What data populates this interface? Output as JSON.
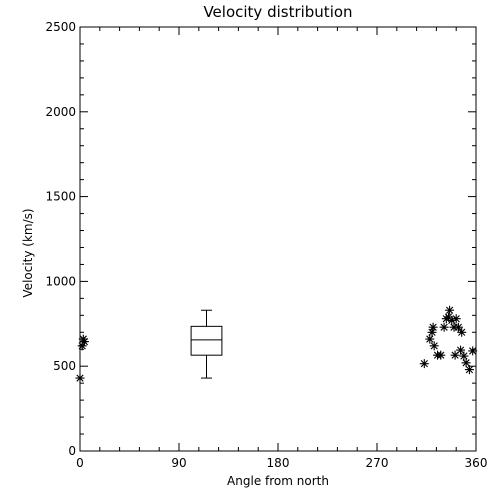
{
  "chart_data": {
    "type": "scatter",
    "title": "Velocity distribution",
    "xlabel": "Angle from north",
    "ylabel": "Velocity (km/s)",
    "xlim": [
      0,
      360
    ],
    "ylim": [
      0,
      2500
    ],
    "xticks": [
      0,
      90,
      180,
      270,
      360
    ],
    "yticks": [
      0,
      500,
      1000,
      1500,
      2000,
      2500
    ],
    "grid": false,
    "legend": "none",
    "marker": "asterisk",
    "color": "#000000",
    "points": [
      {
        "x": 0,
        "y": 430
      },
      {
        "x": 2,
        "y": 620
      },
      {
        "x": 3,
        "y": 660
      },
      {
        "x": 4,
        "y": 645
      },
      {
        "x": 313,
        "y": 515
      },
      {
        "x": 318,
        "y": 660
      },
      {
        "x": 320,
        "y": 700
      },
      {
        "x": 321,
        "y": 730
      },
      {
        "x": 322,
        "y": 620
      },
      {
        "x": 325,
        "y": 565
      },
      {
        "x": 328,
        "y": 565
      },
      {
        "x": 331,
        "y": 730
      },
      {
        "x": 333,
        "y": 780
      },
      {
        "x": 335,
        "y": 790
      },
      {
        "x": 336,
        "y": 830
      },
      {
        "x": 338,
        "y": 770
      },
      {
        "x": 340,
        "y": 730
      },
      {
        "x": 341,
        "y": 565
      },
      {
        "x": 342,
        "y": 780
      },
      {
        "x": 344,
        "y": 730
      },
      {
        "x": 346,
        "y": 595
      },
      {
        "x": 347,
        "y": 700
      },
      {
        "x": 349,
        "y": 560
      },
      {
        "x": 351,
        "y": 520
      },
      {
        "x": 354,
        "y": 480
      },
      {
        "x": 357,
        "y": 590
      }
    ],
    "boxplot": {
      "x_center": 115,
      "x_half_width": 14,
      "whisker_low": 430,
      "q1": 565,
      "median": 655,
      "q3": 735,
      "whisker_high": 830
    }
  }
}
